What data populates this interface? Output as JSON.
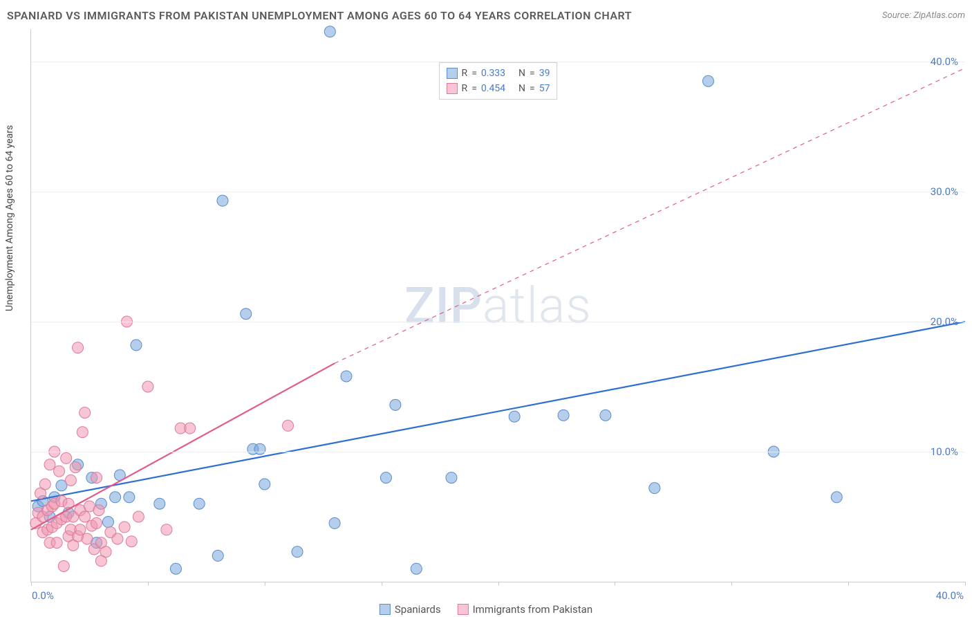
{
  "header": {
    "title": "SPANIARD VS IMMIGRANTS FROM PAKISTAN UNEMPLOYMENT AMONG AGES 60 TO 64 YEARS CORRELATION CHART",
    "source_prefix": "Source: ",
    "source_name": "ZipAtlas.com"
  },
  "ylabel": "Unemployment Among Ages 60 to 64 years",
  "watermark": {
    "bold": "ZIP",
    "light": "atlas"
  },
  "chart": {
    "type": "scatter",
    "xlim": [
      0,
      40
    ],
    "ylim": [
      0,
      42.5
    ],
    "yticks": [
      10,
      20,
      30,
      40
    ],
    "ytick_labels": [
      "10.0%",
      "20.0%",
      "30.0%",
      "40.0%"
    ],
    "xticks": [
      0,
      5,
      10,
      15,
      20,
      25,
      30,
      35,
      40
    ],
    "x_origin_label": "0.0%",
    "x_max_label": "40.0%",
    "grid_color": "#eeeeee",
    "axis_color": "#cccccc",
    "background_color": "#ffffff",
    "series": [
      {
        "id": "spaniards",
        "label": "Spaniards",
        "marker_fill": "rgba(120,165,220,0.55)",
        "marker_stroke": "#5a8bc9",
        "marker_radius": 8,
        "line_color": "#2e6fd0",
        "line_width": 2.2,
        "line_dash_extrapolate": false,
        "trend": {
          "x1": 0,
          "y1": 6.2,
          "x2": 40,
          "y2": 20.0
        },
        "R_label": "R",
        "R": "0.333",
        "N_label": "N",
        "N": "39",
        "points": [
          [
            0.3,
            5.8
          ],
          [
            0.5,
            6.2
          ],
          [
            0.8,
            5.0
          ],
          [
            1.0,
            6.5
          ],
          [
            1.3,
            7.4
          ],
          [
            1.6,
            5.3
          ],
          [
            2.0,
            9.0
          ],
          [
            2.6,
            8.0
          ],
          [
            2.8,
            3.0
          ],
          [
            3.0,
            6.0
          ],
          [
            3.3,
            4.6
          ],
          [
            3.6,
            6.5
          ],
          [
            3.8,
            8.2
          ],
          [
            4.2,
            6.5
          ],
          [
            4.5,
            18.2
          ],
          [
            5.5,
            6.0
          ],
          [
            6.2,
            1.0
          ],
          [
            7.2,
            6.0
          ],
          [
            8.0,
            2.0
          ],
          [
            8.2,
            29.3
          ],
          [
            9.2,
            20.6
          ],
          [
            9.5,
            10.2
          ],
          [
            9.8,
            10.2
          ],
          [
            10.0,
            7.5
          ],
          [
            11.4,
            2.3
          ],
          [
            12.8,
            42.3
          ],
          [
            13.0,
            4.5
          ],
          [
            13.5,
            15.8
          ],
          [
            15.2,
            8.0
          ],
          [
            15.6,
            13.6
          ],
          [
            16.5,
            1.0
          ],
          [
            18.0,
            8.0
          ],
          [
            20.7,
            12.7
          ],
          [
            22.8,
            12.8
          ],
          [
            24.6,
            12.8
          ],
          [
            26.7,
            7.2
          ],
          [
            29.0,
            38.5
          ],
          [
            31.8,
            10.0
          ],
          [
            34.5,
            6.5
          ]
        ]
      },
      {
        "id": "pakistan",
        "label": "Immigrants from Pakistan",
        "marker_fill": "rgba(240,150,175,0.55)",
        "marker_stroke": "#dd7a9a",
        "marker_radius": 8,
        "line_color": "#e15b8a",
        "line_width": 2.2,
        "line_dash_extrapolate": true,
        "trend": {
          "x1": 0,
          "y1": 4.0,
          "x2": 13.0,
          "y2": 16.8,
          "ex2": 40,
          "ey2": 39.5
        },
        "R_label": "R",
        "R": "0.454",
        "N_label": "N",
        "N": "57",
        "points": [
          [
            0.2,
            4.5
          ],
          [
            0.3,
            5.3
          ],
          [
            0.4,
            6.8
          ],
          [
            0.5,
            3.8
          ],
          [
            0.5,
            5.0
          ],
          [
            0.6,
            7.5
          ],
          [
            0.7,
            5.5
          ],
          [
            0.7,
            4.0
          ],
          [
            0.8,
            9.0
          ],
          [
            0.8,
            3.0
          ],
          [
            0.9,
            5.8
          ],
          [
            0.9,
            4.2
          ],
          [
            1.0,
            10.0
          ],
          [
            1.0,
            6.0
          ],
          [
            1.1,
            4.5
          ],
          [
            1.1,
            3.0
          ],
          [
            1.2,
            8.5
          ],
          [
            1.3,
            4.8
          ],
          [
            1.3,
            6.2
          ],
          [
            1.4,
            1.2
          ],
          [
            1.5,
            9.5
          ],
          [
            1.5,
            5.0
          ],
          [
            1.6,
            3.5
          ],
          [
            1.6,
            6.0
          ],
          [
            1.7,
            4.0
          ],
          [
            1.7,
            7.8
          ],
          [
            1.8,
            5.0
          ],
          [
            1.8,
            2.8
          ],
          [
            1.9,
            8.8
          ],
          [
            2.0,
            18.0
          ],
          [
            2.0,
            3.5
          ],
          [
            2.1,
            5.5
          ],
          [
            2.1,
            4.0
          ],
          [
            2.2,
            11.5
          ],
          [
            2.3,
            13.0
          ],
          [
            2.3,
            5.0
          ],
          [
            2.4,
            3.3
          ],
          [
            2.5,
            5.8
          ],
          [
            2.6,
            4.3
          ],
          [
            2.7,
            2.5
          ],
          [
            2.8,
            8.0
          ],
          [
            2.8,
            4.5
          ],
          [
            2.9,
            5.5
          ],
          [
            3.0,
            3.0
          ],
          [
            3.0,
            1.6
          ],
          [
            3.2,
            2.3
          ],
          [
            3.4,
            3.8
          ],
          [
            3.7,
            3.3
          ],
          [
            4.0,
            4.2
          ],
          [
            4.1,
            20.0
          ],
          [
            4.3,
            3.1
          ],
          [
            4.6,
            5.0
          ],
          [
            5.0,
            15.0
          ],
          [
            5.8,
            4.0
          ],
          [
            6.4,
            11.8
          ],
          [
            6.8,
            11.8
          ],
          [
            11.0,
            12.0
          ]
        ]
      }
    ]
  }
}
